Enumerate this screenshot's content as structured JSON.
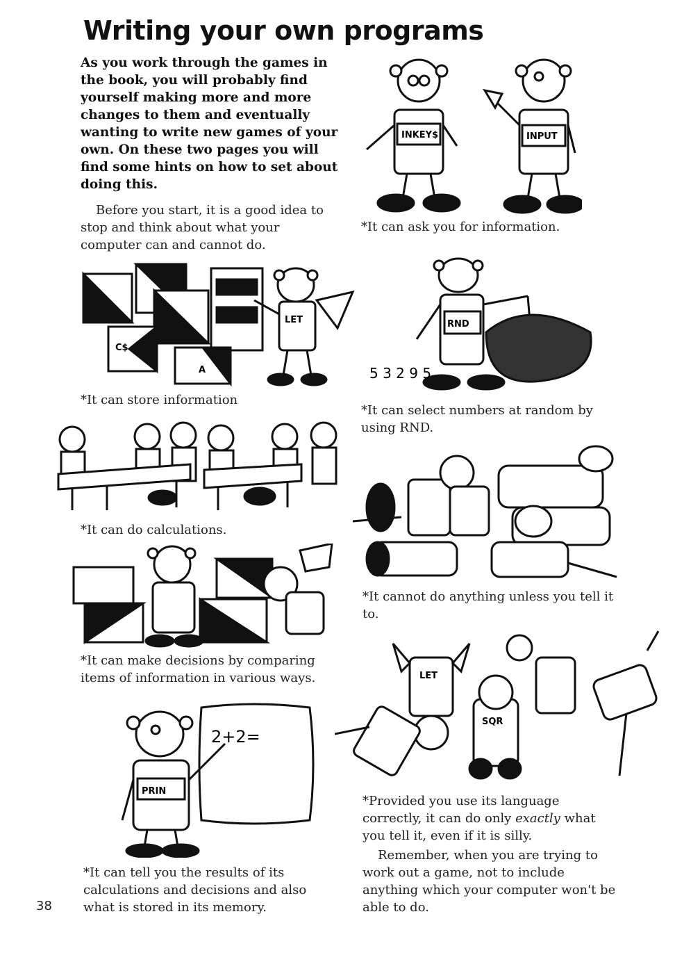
{
  "page": {
    "title": "Writing your own programs",
    "intro": "As you work through the games in the book, you will probably find yourself making more and more changes to them and eventually wanting to write new games of your own. On these two pages you will find some hints on how to set about doing this.",
    "paragraph": "Before you start, it is a good idea to stop and think about what your computer can and cannot do.",
    "page_number": "38"
  },
  "captions": {
    "store": "*It can store information",
    "calc": "*It can do calculations.",
    "decide": "*It can make decisions by comparing items of information in various ways.",
    "tell": "*It can tell you the results of its calculations and decisions and also what is stored in its memory.",
    "ask": "*It can ask you for information.",
    "random": "*It can select numbers at random by using RND.",
    "cannot": "*It cannot do anything unless you tell it to.",
    "provided_pre": "*Provided you use its language correctly, it can do only ",
    "provided_em": "exactly",
    "provided_post": " what you tell it, even if it is silly.",
    "remember": "Remember, when you are trying to work out a game, not to include anything which your computer won't be able to do."
  },
  "robot_labels": {
    "inkey": "INKEY$",
    "input": "INPUT",
    "let": "LET",
    "rnd": "RND",
    "prin": "PRIN",
    "sqr": "SQR",
    "box_c": "C$",
    "box_a": "A",
    "board": "2+2=",
    "random_digits": "5 3 2 9 5"
  }
}
